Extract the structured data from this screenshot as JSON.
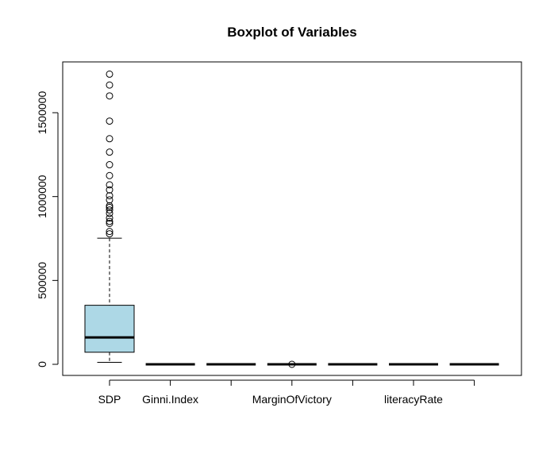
{
  "chart_data": {
    "type": "boxplot",
    "title": "Boxplot of Variables",
    "xlabel": "",
    "ylabel": "",
    "ylim": [
      -60000,
      1770000
    ],
    "y_ticks": [
      0,
      500000,
      1000000,
      1500000
    ],
    "y_tick_labels": [
      "0",
      "500000",
      "1000000",
      "1500000"
    ],
    "categories": [
      "SDP",
      "Ginni.Index",
      "",
      "MarginOfVictory",
      "",
      "literacyRate",
      ""
    ],
    "box_fill": "#add8e6",
    "grid": false,
    "boxes": [
      {
        "category": "SDP",
        "whisker_low": 12000,
        "q1": 72000,
        "median": 160000,
        "q3": 352000,
        "whisker_high": 752000,
        "outliers": [
          778000,
          792000,
          840000,
          852000,
          872000,
          900000,
          920000,
          935000,
          945000,
          980000,
          1005000,
          1040000,
          1070000,
          1125000,
          1190000,
          1265000,
          1345000,
          1450000,
          1600000,
          1665000,
          1730000
        ]
      },
      {
        "category": "Ginni.Index",
        "whisker_low": 0,
        "q1": 0,
        "median": 0,
        "q3": 0,
        "whisker_high": 0,
        "outliers": []
      },
      {
        "category": "",
        "whisker_low": 0,
        "q1": 0,
        "median": 0,
        "q3": 0,
        "whisker_high": 0,
        "outliers": []
      },
      {
        "category": "MarginOfVictory",
        "whisker_low": 0,
        "q1": 0,
        "median": 0,
        "q3": 0,
        "whisker_high": 0,
        "outliers": [
          0
        ]
      },
      {
        "category": "",
        "whisker_low": 0,
        "q1": 0,
        "median": 0,
        "q3": 0,
        "whisker_high": 0,
        "outliers": []
      },
      {
        "category": "literacyRate",
        "whisker_low": 0,
        "q1": 0,
        "median": 0,
        "q3": 0,
        "whisker_high": 0,
        "outliers": []
      },
      {
        "category": "",
        "whisker_low": 0,
        "q1": 0,
        "median": 0,
        "q3": 0,
        "whisker_high": 0,
        "outliers": []
      }
    ]
  }
}
